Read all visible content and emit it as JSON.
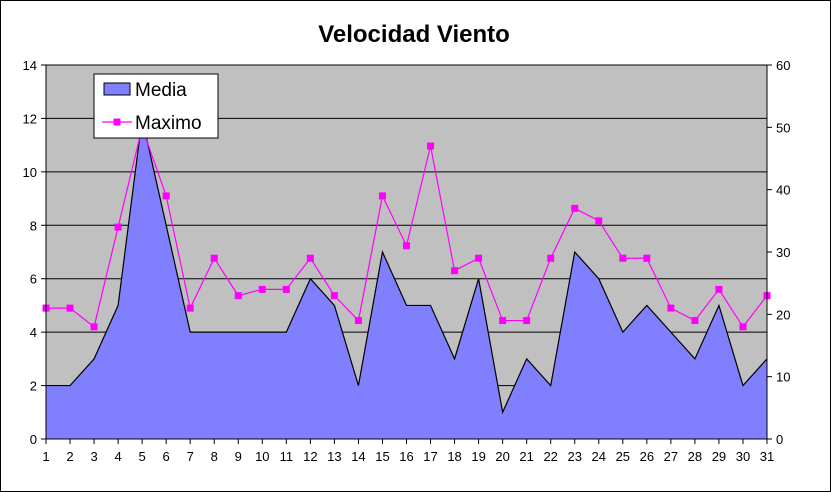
{
  "chart_data": {
    "type": "area",
    "title": "Velocidad Viento",
    "x": [
      1,
      2,
      3,
      4,
      5,
      6,
      7,
      8,
      9,
      10,
      11,
      12,
      13,
      14,
      15,
      16,
      17,
      18,
      19,
      20,
      21,
      22,
      23,
      24,
      25,
      26,
      27,
      28,
      29,
      30,
      31
    ],
    "xlim": [
      1,
      31
    ],
    "ylim_left": [
      0,
      14
    ],
    "yticks_left": [
      0,
      2,
      4,
      6,
      8,
      10,
      12,
      14
    ],
    "ylim_right": [
      0,
      60
    ],
    "yticks_right": [
      0,
      10,
      20,
      30,
      40,
      50,
      60
    ],
    "grid": true,
    "legend_position": "top-left",
    "series": [
      {
        "name": "Media",
        "type": "area",
        "axis": "left",
        "color": "#8080ff",
        "values": [
          2,
          2,
          3,
          5,
          12,
          8,
          4,
          4,
          4,
          4,
          4,
          6,
          5,
          2,
          7,
          5,
          5,
          3,
          6,
          1,
          3,
          2,
          7,
          6,
          4,
          5,
          4,
          3,
          5,
          2,
          3
        ]
      },
      {
        "name": "Maximo",
        "type": "line",
        "axis": "right",
        "color": "#ff00ff",
        "marker": "square",
        "values": [
          21,
          21,
          18,
          34,
          50,
          39,
          21,
          29,
          23,
          24,
          24,
          29,
          23,
          19,
          39,
          31,
          47,
          27,
          29,
          19,
          19,
          29,
          37,
          35,
          29,
          29,
          21,
          19,
          24,
          18,
          23
        ]
      }
    ]
  },
  "colors": {
    "plot_background": "#c0c0c0",
    "area_fill": "#8080ff",
    "line": "#ff00ff",
    "grid": "#000000"
  }
}
